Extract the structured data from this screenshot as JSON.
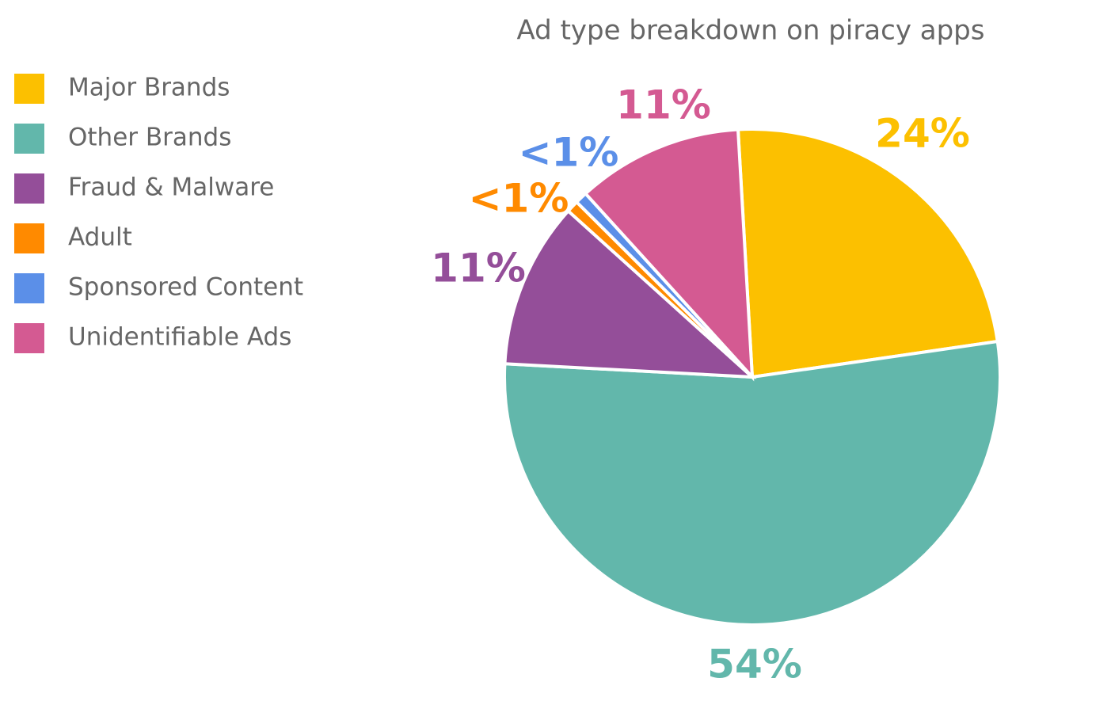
{
  "chart_data": {
    "type": "pie",
    "title": "Ad type breakdown on piracy apps",
    "categories": [
      "Major Brands",
      "Other Brands",
      "Fraud & Malware",
      "Adult",
      "Sponsored Content",
      "Unidentifiable Ads"
    ],
    "values": [
      24,
      54,
      11,
      0.8,
      0.8,
      11
    ],
    "value_labels": [
      "24%",
      "54%",
      "11%",
      "<1%",
      "<1%",
      "11%"
    ],
    "colors": [
      "#fcc000",
      "#62b7ab",
      "#944e99",
      "#ff8a00",
      "#5b8fe8",
      "#d45a92"
    ],
    "legend": "left"
  }
}
